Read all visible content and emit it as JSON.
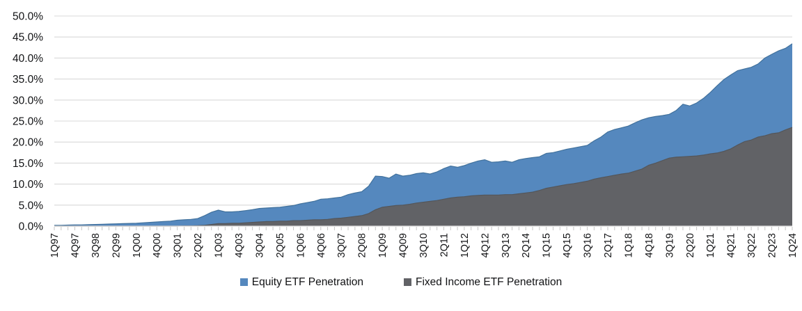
{
  "chart_data": {
    "type": "area",
    "title": "",
    "xlabel": "",
    "ylabel": "",
    "ylim": [
      0,
      50
    ],
    "grid": true,
    "legend_position": "bottom",
    "y_tick_labels": [
      "0.0%",
      "5.0%",
      "10.0%",
      "15.0%",
      "20.0%",
      "25.0%",
      "30.0%",
      "35.0%",
      "40.0%",
      "45.0%",
      "50.0%"
    ],
    "x_tick_labels": [
      "1Q97",
      "4Q97",
      "3Q98",
      "2Q99",
      "1Q00",
      "4Q00",
      "3Q01",
      "2Q02",
      "1Q03",
      "4Q03",
      "3Q04",
      "2Q05",
      "1Q06",
      "4Q06",
      "3Q07",
      "2Q08",
      "1Q09",
      "4Q09",
      "3Q10",
      "2Q11",
      "1Q12",
      "4Q12",
      "3Q13",
      "2Q14",
      "1Q15",
      "4Q15",
      "3Q16",
      "2Q17",
      "1Q18",
      "4Q18",
      "3Q19",
      "2Q20",
      "1Q21",
      "4Q21",
      "3Q22",
      "2Q23",
      "1Q24"
    ],
    "x_label_every_n_points": 3,
    "series": [
      {
        "name": "Equity ETF Penetration",
        "color": "#5588BE",
        "edge_color": "#41719C",
        "values": [
          0.2,
          0.2,
          0.25,
          0.3,
          0.3,
          0.35,
          0.4,
          0.45,
          0.5,
          0.55,
          0.6,
          0.65,
          0.7,
          0.8,
          0.9,
          1.0,
          1.1,
          1.2,
          1.4,
          1.5,
          1.6,
          1.8,
          2.5,
          3.3,
          3.8,
          3.4,
          3.4,
          3.5,
          3.7,
          3.9,
          4.2,
          4.3,
          4.4,
          4.5,
          4.7,
          4.9,
          5.3,
          5.6,
          5.9,
          6.4,
          6.5,
          6.7,
          6.9,
          7.5,
          7.9,
          8.2,
          9.5,
          11.9,
          11.8,
          11.4,
          12.4,
          11.9,
          12.1,
          12.5,
          12.7,
          12.4,
          12.9,
          13.7,
          14.3,
          14.0,
          14.4,
          15.0,
          15.5,
          15.8,
          15.2,
          15.3,
          15.5,
          15.2,
          15.8,
          16.1,
          16.3,
          16.5,
          17.3,
          17.5,
          17.9,
          18.3,
          18.6,
          18.9,
          19.2,
          20.3,
          21.2,
          22.4,
          23.0,
          23.4,
          23.8,
          24.6,
          25.3,
          25.8,
          26.1,
          26.3,
          26.6,
          27.5,
          29.0,
          28.6,
          29.3,
          30.4,
          31.8,
          33.4,
          34.9,
          36.0,
          37.0,
          37.4,
          37.8,
          38.6,
          40.0,
          40.9,
          41.7,
          42.3,
          43.4
        ]
      },
      {
        "name": "Fixed Income ETF Penetration",
        "color": "#616266",
        "edge_color": "#54565A",
        "values": [
          0,
          0,
          0,
          0,
          0,
          0,
          0,
          0,
          0,
          0,
          0,
          0,
          0,
          0,
          0,
          0,
          0,
          0,
          0,
          0.05,
          0.05,
          0.1,
          0.2,
          0.4,
          0.6,
          0.6,
          0.7,
          0.7,
          0.8,
          0.9,
          1.0,
          1.1,
          1.1,
          1.2,
          1.2,
          1.3,
          1.3,
          1.4,
          1.5,
          1.5,
          1.6,
          1.8,
          1.9,
          2.1,
          2.3,
          2.5,
          3.0,
          3.9,
          4.5,
          4.7,
          4.9,
          5.0,
          5.2,
          5.5,
          5.7,
          5.9,
          6.1,
          6.4,
          6.7,
          6.9,
          7.0,
          7.2,
          7.3,
          7.4,
          7.4,
          7.4,
          7.5,
          7.5,
          7.7,
          7.9,
          8.1,
          8.5,
          9.0,
          9.3,
          9.6,
          9.9,
          10.1,
          10.4,
          10.7,
          11.2,
          11.5,
          11.8,
          12.1,
          12.4,
          12.6,
          13.1,
          13.6,
          14.5,
          15.0,
          15.6,
          16.2,
          16.4,
          16.5,
          16.6,
          16.7,
          16.9,
          17.2,
          17.4,
          17.8,
          18.4,
          19.3,
          20.1,
          20.5,
          21.2,
          21.5,
          22.0,
          22.2,
          22.9,
          23.5
        ]
      }
    ],
    "colors": {
      "gridline": "#D9D9D9",
      "axis_line": "#D9D9D9",
      "tick_mark": "#C6C6C6",
      "text": "#111214"
    }
  }
}
